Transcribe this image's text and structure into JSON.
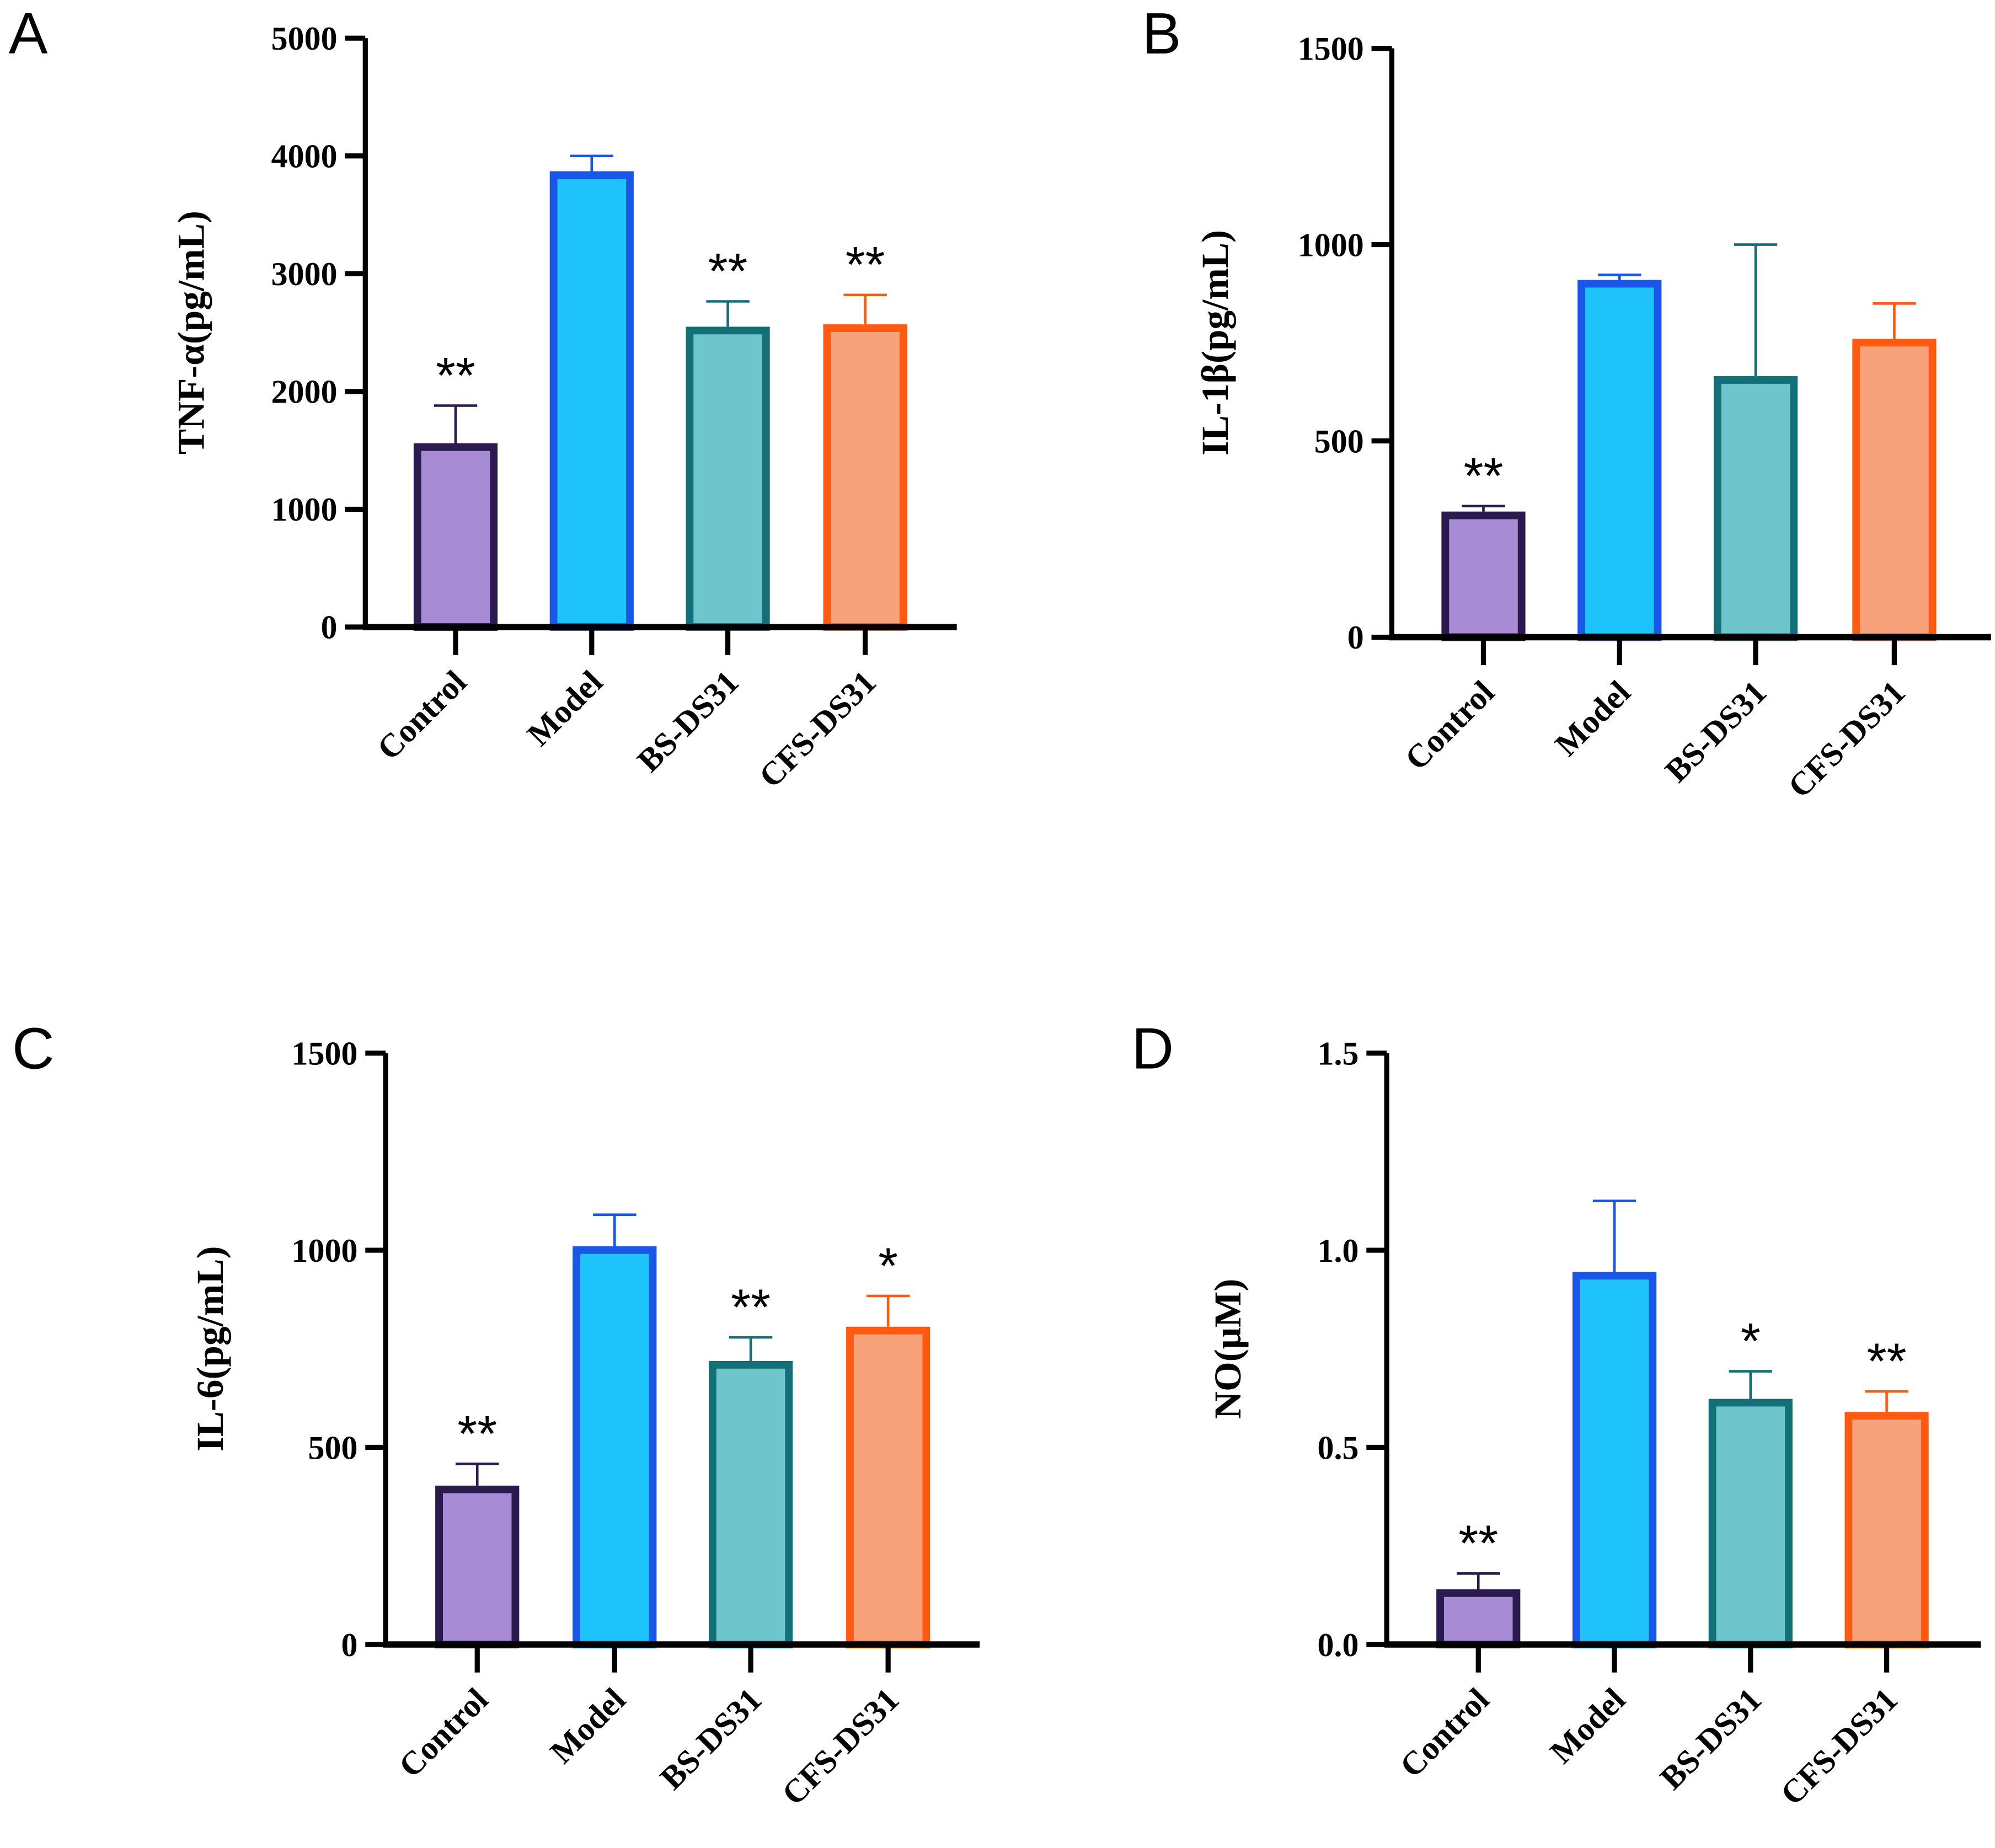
{
  "chart_data": [
    {
      "type": "bar",
      "panel": "A",
      "ylabel": "TNF-α(pg/mL)",
      "categories": [
        "Control",
        "Model",
        "BS-DS31",
        "CFS-DS31"
      ],
      "values": [
        1560,
        3870,
        2550,
        2570
      ],
      "errors": [
        320,
        130,
        215,
        250
      ],
      "significance": [
        "**",
        "",
        "**",
        "**"
      ],
      "ylim": [
        0,
        5000
      ],
      "yticks": [
        0,
        1000,
        2000,
        3000,
        4000,
        5000
      ],
      "ytick_labels": [
        "0",
        "1000",
        "2000",
        "3000",
        "4000",
        "5000"
      ]
    },
    {
      "type": "bar",
      "panel": "B",
      "ylabel": "IL-1β(pg/mL)",
      "categories": [
        "Control",
        "Model",
        "BS-DS31",
        "CFS-DS31"
      ],
      "values": [
        320,
        910,
        665,
        760
      ],
      "errors": [
        14,
        13,
        335,
        90
      ],
      "significance": [
        "**",
        "",
        "",
        ""
      ],
      "ylim": [
        0,
        1500
      ],
      "yticks": [
        0,
        500,
        1000,
        1500
      ],
      "ytick_labels": [
        "0",
        "500",
        "1000",
        "1500"
      ]
    },
    {
      "type": "bar",
      "panel": "C",
      "ylabel": "IL-6(pg/mL)",
      "categories": [
        "Control",
        "Model",
        "BS-DS31",
        "CFS-DS31"
      ],
      "values": [
        403,
        1010,
        719,
        806
      ],
      "errors": [
        55,
        80,
        60,
        78
      ],
      "significance": [
        "**",
        "",
        "**",
        "*"
      ],
      "ylim": [
        0,
        1500
      ],
      "yticks": [
        0,
        500,
        1000,
        1500
      ],
      "ytick_labels": [
        "0",
        "500",
        "1000",
        "1500"
      ]
    },
    {
      "type": "bar",
      "panel": "D",
      "ylabel": "NO(μM)",
      "categories": [
        "Control",
        "Model",
        "BS-DS31",
        "CFS-DS31"
      ],
      "values": [
        0.14,
        0.945,
        0.623,
        0.59
      ],
      "errors": [
        0.04,
        0.18,
        0.07,
        0.052
      ],
      "significance": [
        "**",
        "",
        "*",
        "**"
      ],
      "ylim": [
        0,
        1.5
      ],
      "yticks": [
        0,
        0.5,
        1.0,
        1.5
      ],
      "ytick_labels": [
        "0.0",
        "0.5",
        "1.0",
        "1.5"
      ]
    }
  ],
  "colors": {
    "fill": [
      "#a78bd4",
      "#1ec3fb",
      "#6ec6cc",
      "#f8a27c"
    ],
    "stroke": [
      "#2a1a4e",
      "#1a56e8",
      "#136f78",
      "#ff5a0f"
    ]
  }
}
